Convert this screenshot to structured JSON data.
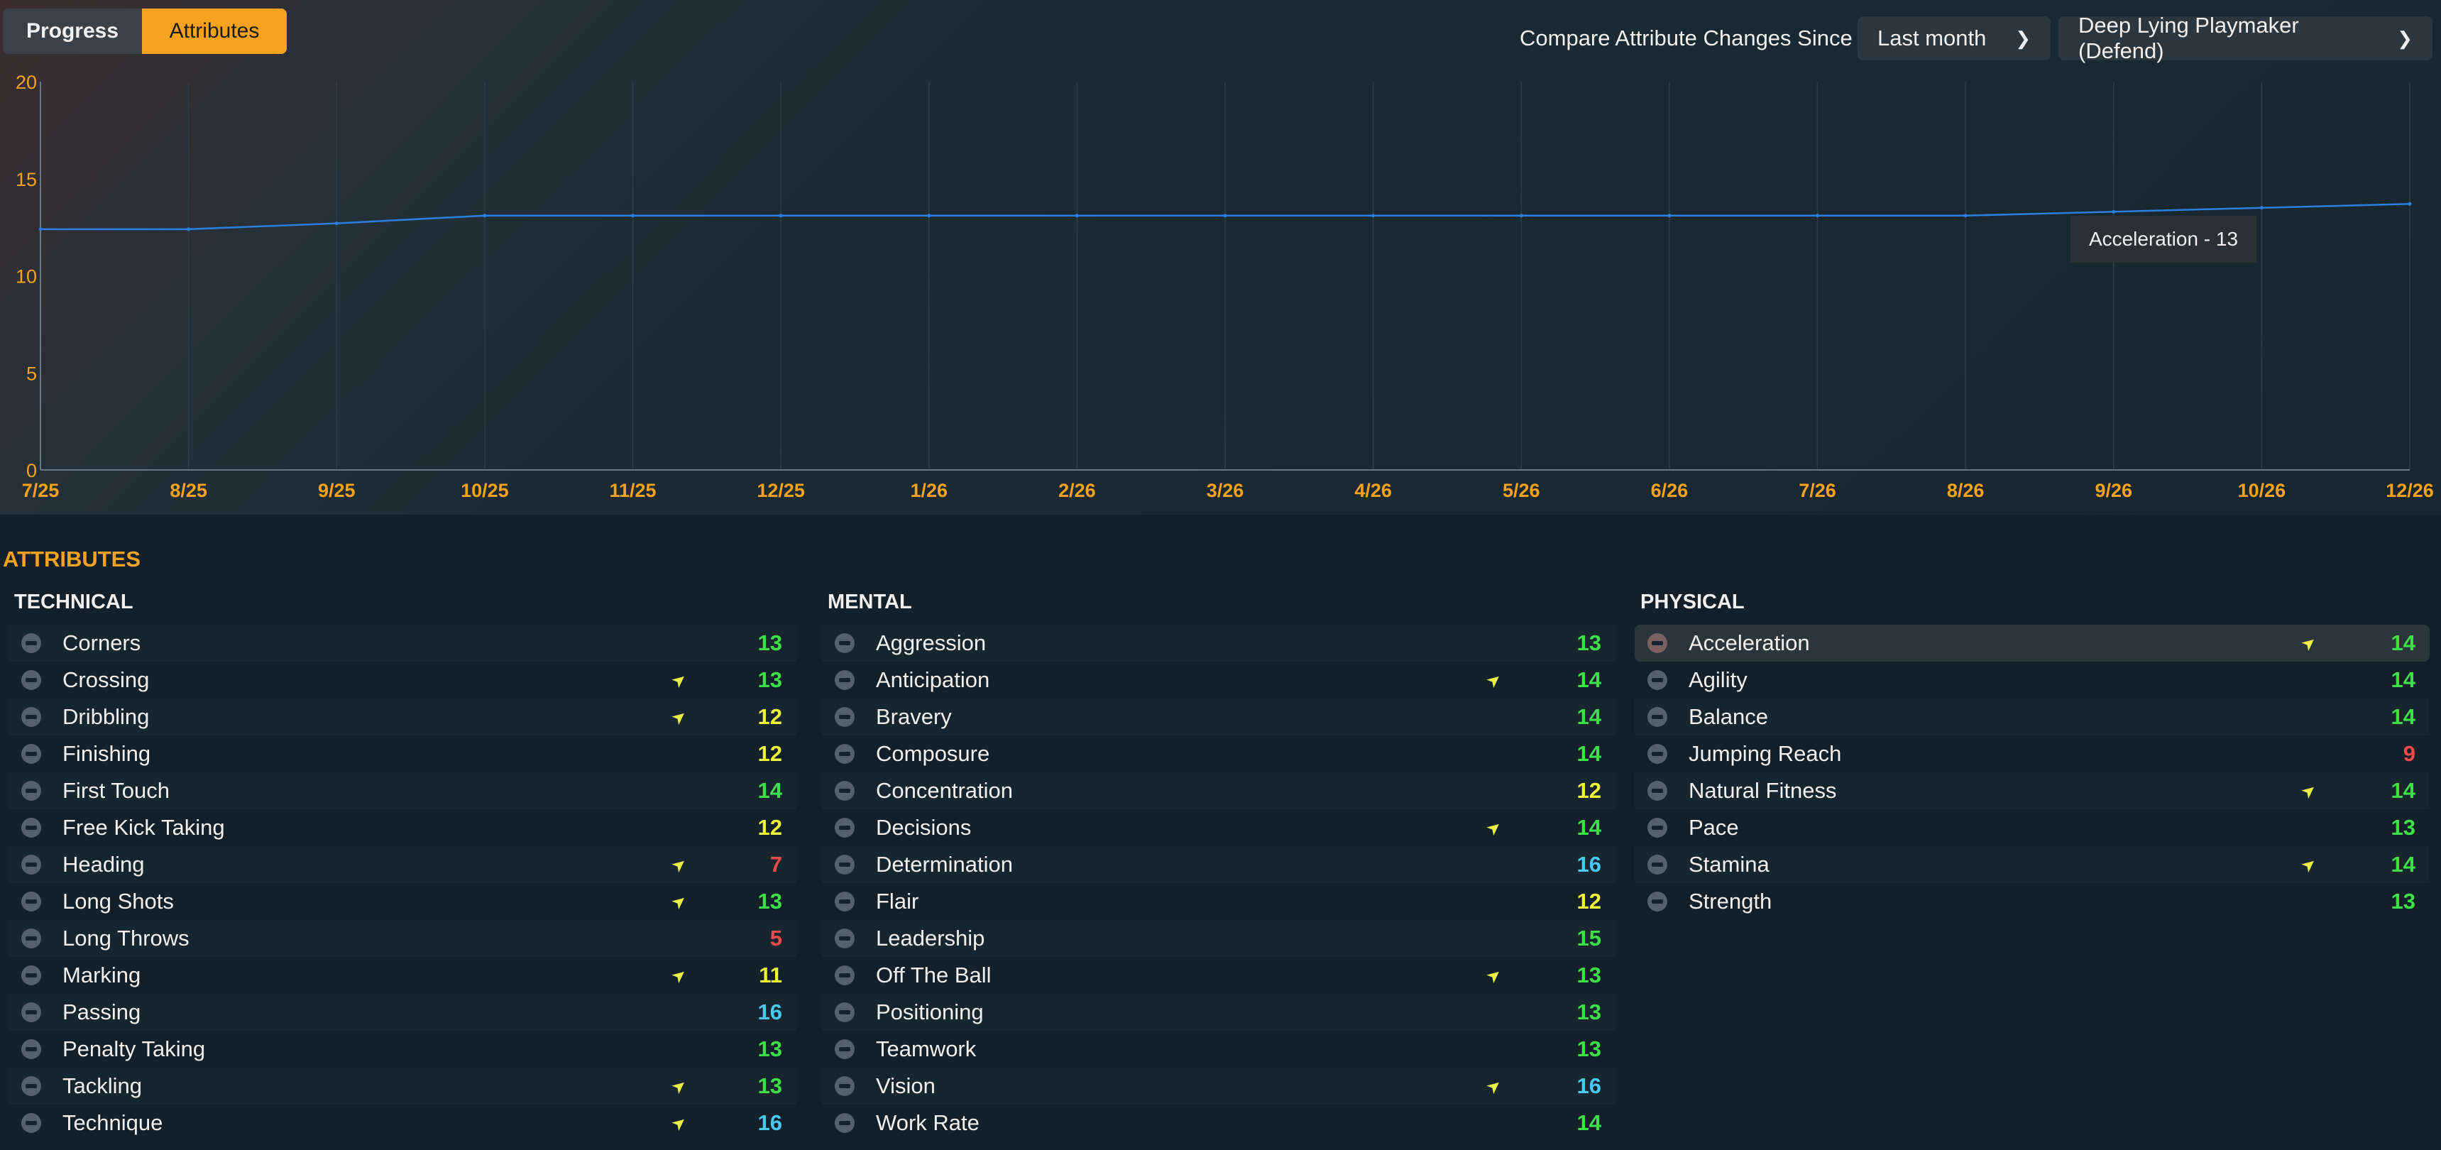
{
  "tabs": [
    {
      "label": "Progress",
      "active": false
    },
    {
      "label": "Attributes",
      "active": true
    }
  ],
  "compare": {
    "label": "Compare Attribute Changes Since",
    "period": "Last month",
    "role": "Deep Lying Playmaker (Defend)"
  },
  "chart_data": {
    "type": "line",
    "x": [
      "7/25",
      "8/25",
      "9/25",
      "10/25",
      "11/25",
      "12/25",
      "1/26",
      "2/26",
      "3/26",
      "4/26",
      "5/26",
      "6/26",
      "7/26",
      "8/26",
      "9/26",
      "10/26",
      "12/26"
    ],
    "y_ticks": [
      "20",
      "15",
      "10",
      "5",
      "0"
    ],
    "ylim": [
      0,
      20
    ],
    "grid": true,
    "series": [
      {
        "values": [
          12.4,
          12.4,
          12.7,
          13.1,
          13.1,
          13.1,
          13.1,
          13.1,
          13.1,
          13.1,
          13.1,
          13.1,
          13.1,
          13.1,
          13.3,
          13.5,
          13.7
        ]
      }
    ],
    "tooltip": "Acceleration - 13",
    "line_color": "#2a7fe0",
    "axis_label_color": "#f7a21c"
  },
  "attributes_title": "ATTRIBUTES",
  "value_colors": {
    "green": "#3ee04a",
    "yellow": "#eef23d",
    "red": "#f04a4a",
    "cyan": "#4ac8f0"
  },
  "technical": {
    "header": "TECHNICAL",
    "rows": [
      {
        "name": "Corners",
        "value": "13",
        "color": "green",
        "trend": false
      },
      {
        "name": "Crossing",
        "value": "13",
        "color": "green",
        "trend": true
      },
      {
        "name": "Dribbling",
        "value": "12",
        "color": "yellow",
        "trend": true
      },
      {
        "name": "Finishing",
        "value": "12",
        "color": "yellow",
        "trend": false
      },
      {
        "name": "First Touch",
        "value": "14",
        "color": "green",
        "trend": false
      },
      {
        "name": "Free Kick Taking",
        "value": "12",
        "color": "yellow",
        "trend": false
      },
      {
        "name": "Heading",
        "value": "7",
        "color": "red",
        "trend": true
      },
      {
        "name": "Long Shots",
        "value": "13",
        "color": "green",
        "trend": true
      },
      {
        "name": "Long Throws",
        "value": "5",
        "color": "red",
        "trend": false
      },
      {
        "name": "Marking",
        "value": "11",
        "color": "yellow",
        "trend": true
      },
      {
        "name": "Passing",
        "value": "16",
        "color": "cyan",
        "trend": false
      },
      {
        "name": "Penalty Taking",
        "value": "13",
        "color": "green",
        "trend": false
      },
      {
        "name": "Tackling",
        "value": "13",
        "color": "green",
        "trend": true
      },
      {
        "name": "Technique",
        "value": "16",
        "color": "cyan",
        "trend": true
      }
    ]
  },
  "mental": {
    "header": "MENTAL",
    "rows": [
      {
        "name": "Aggression",
        "value": "13",
        "color": "green",
        "trend": false
      },
      {
        "name": "Anticipation",
        "value": "14",
        "color": "green",
        "trend": true
      },
      {
        "name": "Bravery",
        "value": "14",
        "color": "green",
        "trend": false
      },
      {
        "name": "Composure",
        "value": "14",
        "color": "green",
        "trend": false
      },
      {
        "name": "Concentration",
        "value": "12",
        "color": "yellow",
        "trend": false
      },
      {
        "name": "Decisions",
        "value": "14",
        "color": "green",
        "trend": true
      },
      {
        "name": "Determination",
        "value": "16",
        "color": "cyan",
        "trend": false
      },
      {
        "name": "Flair",
        "value": "12",
        "color": "yellow",
        "trend": false
      },
      {
        "name": "Leadership",
        "value": "15",
        "color": "green",
        "trend": false
      },
      {
        "name": "Off The Ball",
        "value": "13",
        "color": "green",
        "trend": true
      },
      {
        "name": "Positioning",
        "value": "13",
        "color": "green",
        "trend": false
      },
      {
        "name": "Teamwork",
        "value": "13",
        "color": "green",
        "trend": false
      },
      {
        "name": "Vision",
        "value": "16",
        "color": "cyan",
        "trend": true
      },
      {
        "name": "Work Rate",
        "value": "14",
        "color": "green",
        "trend": false
      }
    ]
  },
  "physical": {
    "header": "PHYSICAL",
    "rows": [
      {
        "name": "Acceleration",
        "value": "14",
        "color": "green",
        "trend": true,
        "selected": true
      },
      {
        "name": "Agility",
        "value": "14",
        "color": "green",
        "trend": false
      },
      {
        "name": "Balance",
        "value": "14",
        "color": "green",
        "trend": false
      },
      {
        "name": "Jumping Reach",
        "value": "9",
        "color": "red",
        "trend": false
      },
      {
        "name": "Natural Fitness",
        "value": "14",
        "color": "green",
        "trend": true
      },
      {
        "name": "Pace",
        "value": "13",
        "color": "green",
        "trend": false
      },
      {
        "name": "Stamina",
        "value": "14",
        "color": "green",
        "trend": true
      },
      {
        "name": "Strength",
        "value": "13",
        "color": "green",
        "trend": false
      }
    ]
  }
}
